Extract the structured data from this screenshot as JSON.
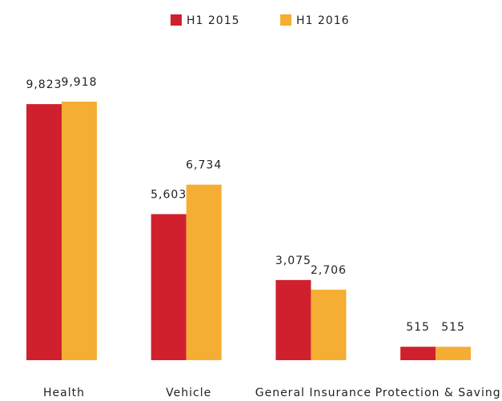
{
  "chart_data": {
    "type": "bar",
    "categories": [
      "Health",
      "Vehicle",
      "General Insurance",
      "Protection & Saving"
    ],
    "series": [
      {
        "name": "H1 2015",
        "color": "#d0202e",
        "values": [
          9823,
          5603,
          3075,
          515
        ],
        "value_labels": [
          "9,823",
          "5,603",
          "3,075",
          "515"
        ]
      },
      {
        "name": "H1 2016",
        "color": "#f5ae33",
        "values": [
          9918,
          6734,
          2706,
          515
        ],
        "value_labels": [
          "9,918",
          "6,734",
          "2,706",
          "515"
        ]
      }
    ],
    "legend": "top"
  }
}
